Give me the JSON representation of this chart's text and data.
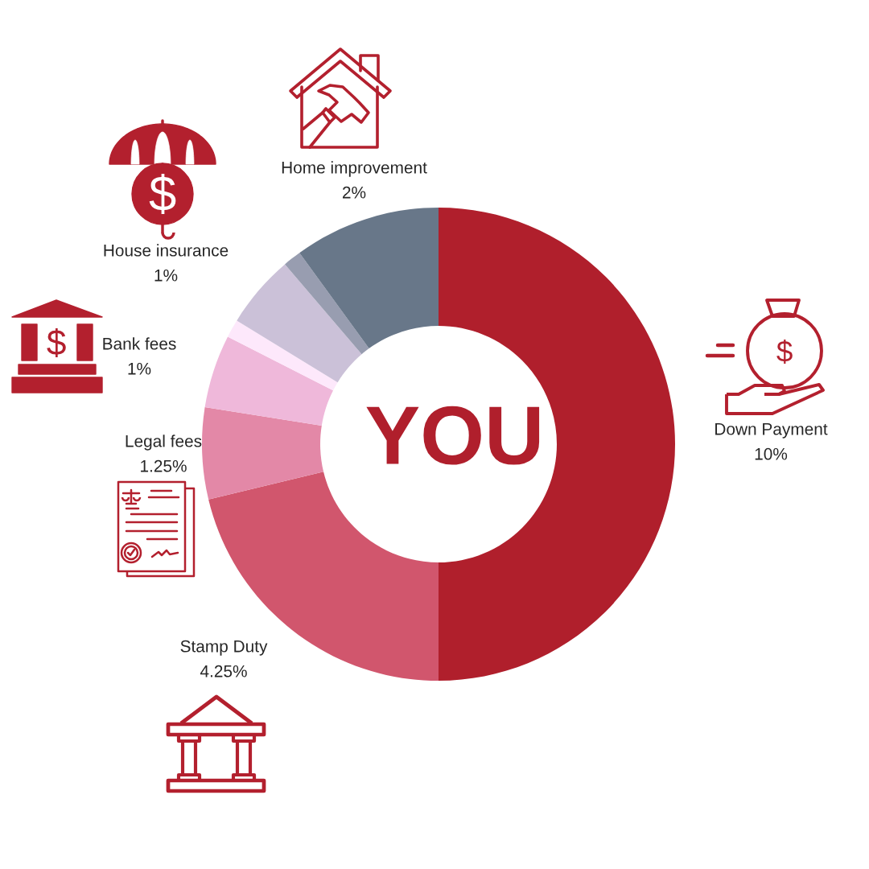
{
  "chart_data": {
    "type": "donut",
    "categories": [
      "Down Payment",
      "Stamp Duty",
      "Legal fees",
      "Bank fees",
      null,
      "House insurance",
      null,
      "Home improvement"
    ],
    "values": [
      10,
      4.25,
      1.25,
      1,
      0.25,
      1,
      0.25,
      2
    ],
    "colors": [
      "#b01f2c",
      "#d1566d",
      "#e388a7",
      "#efb8da",
      "#fde8fb",
      "#cbc1d8",
      "#989db0",
      "#687789"
    ],
    "value_labels": [
      "10%",
      "4.25%",
      "1.25%",
      "1%",
      null,
      "1%",
      null,
      "2%"
    ],
    "annotations": [
      "YOU"
    ]
  }
}
